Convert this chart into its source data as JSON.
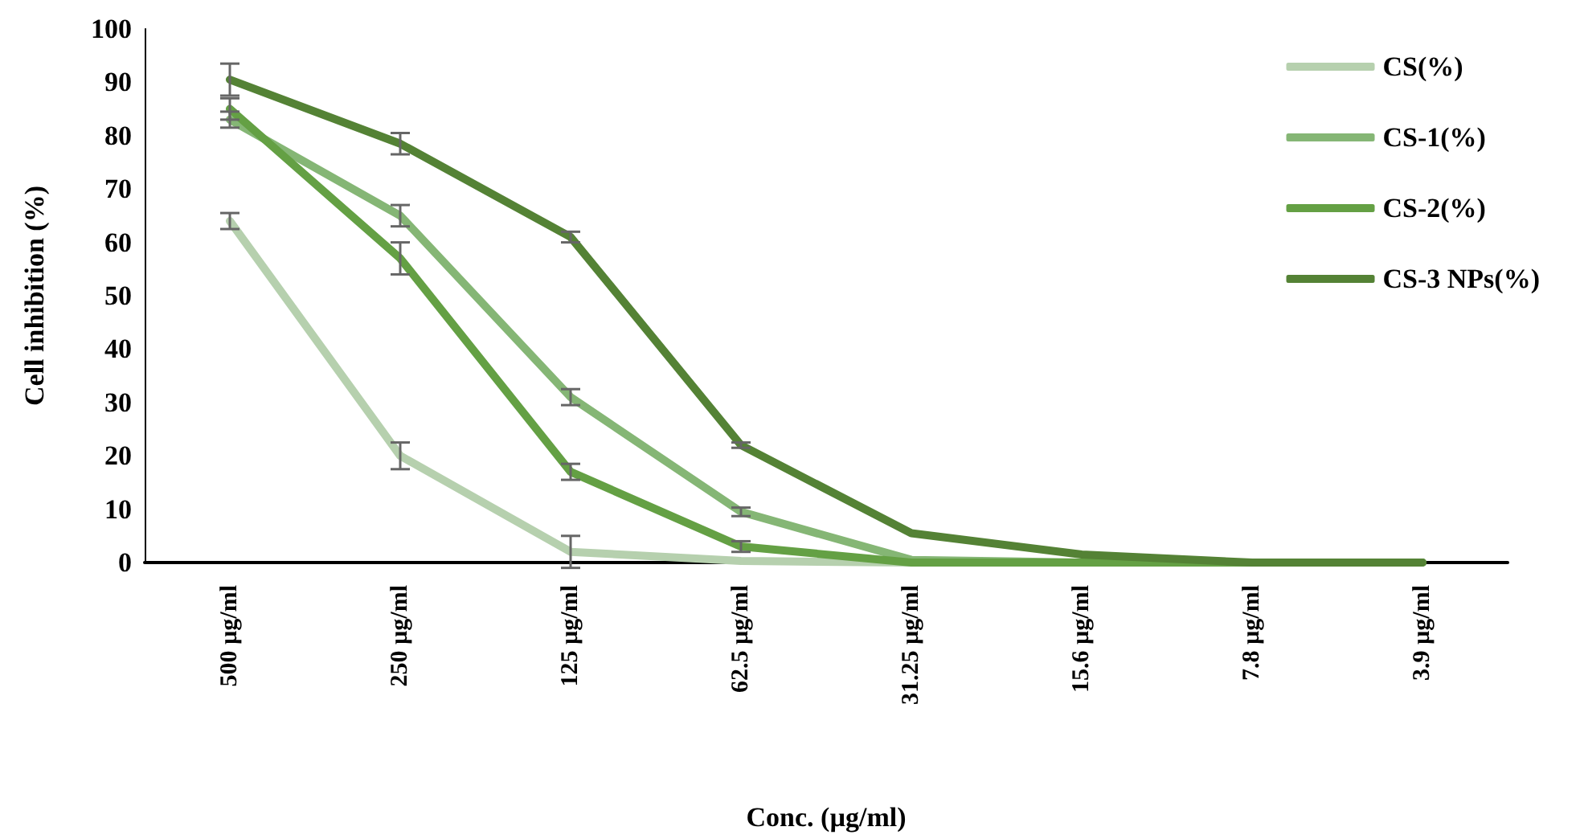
{
  "chart_data": {
    "type": "line",
    "xlabel": "Conc. (µg/ml)",
    "ylabel": "Cell inhibition (%)",
    "categories": [
      "500 µg/ml",
      "250 µg/ml",
      "125 µg/ml",
      "62.5 µg/ml",
      "31.25 µg/ml",
      "15.6 µg/ml",
      "7.8 µg/ml",
      "3.9 µg/ml"
    ],
    "series": [
      {
        "name": "CS(%)",
        "color": "#b6d0ae",
        "values": [
          64,
          20,
          2,
          0.3,
          0,
          0,
          0,
          0
        ],
        "errors": [
          1.5,
          2.5,
          3,
          null,
          null,
          null,
          null,
          null
        ]
      },
      {
        "name": "CS-1(%)",
        "color": "#85b675",
        "values": [
          83,
          65,
          31,
          9.5,
          0.5,
          0,
          0,
          0
        ],
        "errors": [
          1.5,
          2,
          1.5,
          0.8,
          null,
          null,
          null,
          null
        ]
      },
      {
        "name": "CS-2(%)",
        "color": "#64a044",
        "values": [
          85,
          57,
          17,
          3,
          0,
          0,
          0,
          0
        ],
        "errors": [
          2,
          3,
          1.5,
          1,
          null,
          null,
          null,
          null
        ]
      },
      {
        "name": "CS-3 NPs(%)",
        "color": "#548235",
        "values": [
          90.5,
          78.5,
          61,
          22,
          5.5,
          1.5,
          0,
          0
        ],
        "errors": [
          3,
          2,
          1,
          0.5,
          null,
          null,
          null,
          null
        ]
      }
    ],
    "ylim": [
      0,
      100
    ],
    "yticks": [
      0,
      10,
      20,
      30,
      40,
      50,
      60,
      70,
      80,
      90,
      100
    ],
    "grid": false,
    "legend": "top right",
    "marker": "none",
    "line_style": "solid"
  }
}
